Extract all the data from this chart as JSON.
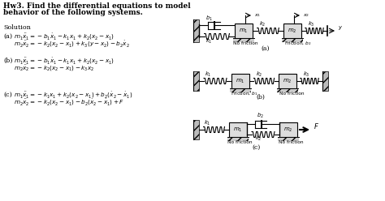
{
  "bg_color": "#ffffff",
  "title_line1": "Hw3. Find the differential equations to model",
  "title_line2": "behavior of the following systems.",
  "solution": "Solution",
  "a_label": "(a)",
  "a_eq1": "$m_1\\ddot{x}_1=-b_1\\dot{x}_1-k_1x_1+k_2(x_2-x_1)$",
  "a_eq2": "$m_2\\ddot{x}_2=-k_2(x_2-x_1)+k_3(y-x_2)-b_2\\dot{x}_2$",
  "b_label": "(b)",
  "b_eq1": "$m_1\\ddot{x}_1=-b_1\\dot{x}_1-k_1x_1+k_2(x_2-x_1)$",
  "b_eq2": "$m_2\\ddot{x}_2=-k_2(x_2-x_1)-k_3x_2$",
  "c_label": "(c)",
  "c_eq1": "$m_1\\ddot{x}_1=-k_1x_1+k_2(x_2-x_1)+b_2(\\dot{x}_2-\\dot{x}_1)$",
  "c_eq2": "$m_2\\ddot{x}_2=-k_2(x_2-x_1)-b_2(\\dot{x}_2-\\dot{x}_1)+F$",
  "diagram_a_label": "(a)",
  "diagram_b_label": "(b)",
  "diagram_c_label": "(c)",
  "no_friction": "No friction",
  "friction_b1": "Friction, $b_1$",
  "friction_b2": "Friction, $b_2$"
}
